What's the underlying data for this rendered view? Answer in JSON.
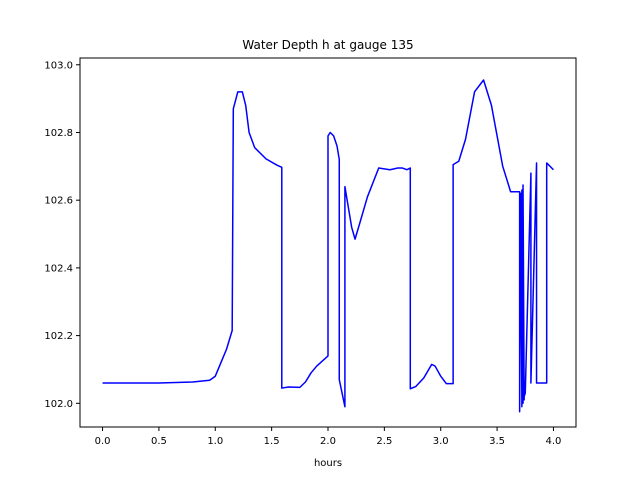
{
  "chart_data": {
    "type": "line",
    "title": "Water Depth h at gauge 135",
    "xlabel": "hours",
    "ylabel": "",
    "xlim": [
      -0.2,
      4.2
    ],
    "ylim": [
      101.93,
      103.02
    ],
    "xticks": [
      0.0,
      0.5,
      1.0,
      1.5,
      2.0,
      2.5,
      3.0,
      3.5,
      4.0
    ],
    "xtick_labels": [
      "0.0",
      "0.5",
      "1.0",
      "1.5",
      "2.0",
      "2.5",
      "3.0",
      "3.5",
      "4.0"
    ],
    "yticks": [
      102.0,
      102.2,
      102.4,
      102.6,
      102.8,
      103.0
    ],
    "ytick_labels": [
      "102.0",
      "102.2",
      "102.4",
      "102.6",
      "102.8",
      "103.0"
    ],
    "grid": false,
    "color": "#0000ff",
    "series": [
      {
        "x": [
          0.0,
          0.5,
          0.8,
          0.95,
          1.0,
          1.05,
          1.1,
          1.15,
          1.16,
          1.2,
          1.24,
          1.27,
          1.3,
          1.35,
          1.45,
          1.55,
          1.59,
          1.59,
          1.65,
          1.75,
          1.8,
          1.85,
          1.9,
          2.0,
          2.0,
          2.02,
          2.05,
          2.08,
          2.1,
          2.1,
          2.15,
          2.15,
          2.18,
          2.21,
          2.24,
          2.28,
          2.35,
          2.45,
          2.55,
          2.62,
          2.66,
          2.7,
          2.73,
          2.73,
          2.78,
          2.85,
          2.92,
          2.95,
          3.0,
          3.05,
          3.11,
          3.11,
          3.16,
          3.22,
          3.3,
          3.38,
          3.45,
          3.55,
          3.62,
          3.7,
          3.7,
          3.71,
          3.72,
          3.72,
          3.73,
          3.73,
          3.74,
          3.74,
          3.75,
          3.8,
          3.8,
          3.85,
          3.85,
          3.9,
          3.94,
          3.94,
          4.0
        ],
        "y": [
          102.06,
          102.06,
          102.063,
          102.068,
          102.08,
          102.12,
          102.16,
          102.215,
          102.87,
          102.92,
          102.92,
          102.88,
          102.8,
          102.755,
          102.722,
          102.703,
          102.697,
          102.045,
          102.048,
          102.047,
          102.063,
          102.09,
          102.11,
          102.14,
          102.79,
          102.8,
          102.79,
          102.76,
          102.72,
          102.07,
          101.99,
          102.64,
          102.58,
          102.52,
          102.485,
          102.53,
          102.61,
          102.695,
          102.69,
          102.695,
          102.695,
          102.69,
          102.695,
          102.043,
          102.05,
          102.075,
          102.115,
          102.11,
          102.08,
          102.058,
          102.058,
          102.705,
          102.715,
          102.78,
          102.92,
          102.955,
          102.88,
          102.7,
          102.625,
          102.625,
          101.975,
          102.62,
          101.99,
          102.63,
          102.0,
          102.645,
          102.01,
          102.02,
          102.03,
          102.68,
          102.06,
          102.71,
          102.06,
          102.06,
          102.06,
          102.71,
          102.69
        ]
      }
    ]
  }
}
